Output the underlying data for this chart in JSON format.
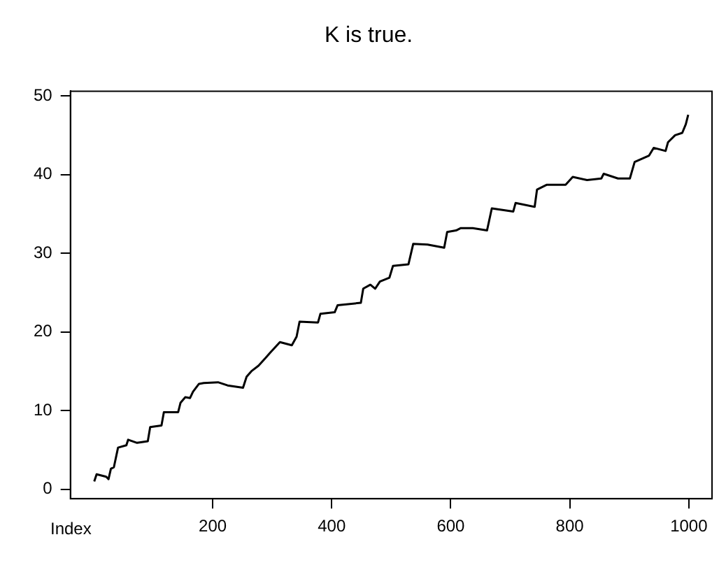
{
  "chart_data": {
    "type": "line",
    "title": "K is true.",
    "xlabel": "Index",
    "x": [
      1,
      5,
      21,
      25,
      29,
      34,
      41,
      55,
      58,
      73,
      91,
      95,
      114,
      118,
      142,
      146,
      154,
      162,
      167,
      177,
      185,
      209,
      225,
      251,
      257,
      265,
      277,
      289,
      297,
      313,
      333,
      341,
      346,
      377,
      381,
      405,
      410,
      449,
      453,
      465,
      473,
      481,
      497,
      503,
      529,
      537,
      561,
      589,
      594,
      609,
      617,
      637,
      661,
      669,
      705,
      709,
      741,
      745,
      761,
      793,
      805,
      829,
      853,
      857,
      881,
      901,
      909,
      933,
      941,
      961,
      965,
      977,
      989,
      995,
      999
    ],
    "series": [
      {
        "color": "#000000",
        "values": [
          1.0,
          1.9,
          1.6,
          1.3,
          2.6,
          2.8,
          5.3,
          5.6,
          6.3,
          5.9,
          6.1,
          7.9,
          8.1,
          9.8,
          9.8,
          11.0,
          11.7,
          11.6,
          12.4,
          13.4,
          13.5,
          13.6,
          13.2,
          12.9,
          14.3,
          15.0,
          15.7,
          16.7,
          17.4,
          18.7,
          18.3,
          19.4,
          21.3,
          21.2,
          22.3,
          22.5,
          23.4,
          23.7,
          25.5,
          26.0,
          25.5,
          26.4,
          26.9,
          28.4,
          28.6,
          31.2,
          31.1,
          30.7,
          32.7,
          32.9,
          33.2,
          33.2,
          32.9,
          35.7,
          35.3,
          36.4,
          35.9,
          38.1,
          38.7,
          38.7,
          39.7,
          39.3,
          39.5,
          40.1,
          39.5,
          39.5,
          41.6,
          42.4,
          43.4,
          43.0,
          44.1,
          45.0,
          45.3,
          46.4,
          47.6
        ]
      }
    ],
    "xlim": [
      -39,
      1039
    ],
    "ylim": [
      -1.2,
      50.6
    ],
    "xticks": [
      200,
      400,
      600,
      800,
      1000
    ],
    "yticks": [
      0,
      10,
      20,
      30,
      40,
      50
    ],
    "grid": false,
    "legend": false,
    "marker": "none",
    "line_style": "solid"
  }
}
